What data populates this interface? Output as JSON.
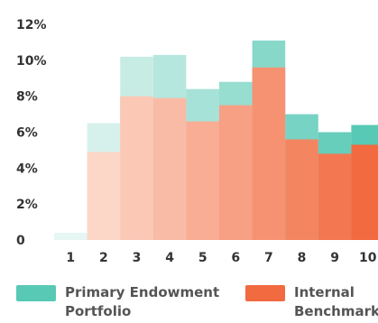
{
  "chart_data": {
    "type": "bar",
    "categories": [
      "1",
      "2",
      "3",
      "4",
      "5",
      "6",
      "7",
      "8",
      "9",
      "10"
    ],
    "series": [
      {
        "name": "Primary Endowment Portfolio",
        "values": [
          0.4,
          6.5,
          10.2,
          10.3,
          8.4,
          8.8,
          11.1,
          7.0,
          6.0,
          6.4
        ]
      },
      {
        "name": "Internal Benchmark",
        "values": [
          0,
          4.9,
          8.0,
          7.9,
          6.6,
          7.5,
          9.6,
          5.6,
          4.8,
          5.3
        ]
      }
    ],
    "ylim": [
      0,
      12
    ],
    "yticks": [
      "0",
      "2%",
      "4%",
      "6%",
      "8%",
      "10%",
      "12%"
    ],
    "ytick_values": [
      0,
      2,
      4,
      6,
      8,
      10,
      12
    ],
    "grid": false,
    "legend_position": "bottom",
    "colors": {
      "portfolio_light": "#e6f6f2",
      "portfolio_dark": "#57c9b5",
      "benchmark_light": "#fde3d8",
      "benchmark_dark": "#f26a3f"
    }
  }
}
